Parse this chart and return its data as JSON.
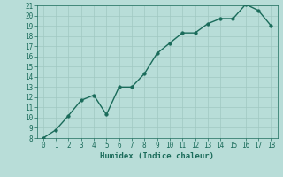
{
  "xlabel": "Humidex (Indice chaleur)",
  "x": [
    0,
    1,
    2,
    3,
    4,
    5,
    6,
    7,
    8,
    9,
    10,
    11,
    12,
    13,
    14,
    15,
    16,
    17,
    18
  ],
  "y": [
    8.0,
    8.8,
    10.2,
    11.7,
    12.2,
    10.3,
    13.0,
    13.0,
    14.3,
    16.3,
    17.3,
    18.3,
    18.3,
    19.2,
    19.7,
    19.7,
    21.1,
    20.5,
    19.0
  ],
  "line_color": "#1a6b5a",
  "marker_color": "#1a6b5a",
  "bg_color": "#b8ddd8",
  "grid_color": "#a0c8c2",
  "ylim": [
    8,
    21
  ],
  "xlim": [
    -0.5,
    18.5
  ],
  "yticks": [
    8,
    9,
    10,
    11,
    12,
    13,
    14,
    15,
    16,
    17,
    18,
    19,
    20,
    21
  ],
  "xticks": [
    0,
    1,
    2,
    3,
    4,
    5,
    6,
    7,
    8,
    9,
    10,
    11,
    12,
    13,
    14,
    15,
    16,
    17,
    18
  ],
  "tick_fontsize": 5.5,
  "xlabel_fontsize": 6.5,
  "line_width": 1.0,
  "marker_size": 2.5
}
